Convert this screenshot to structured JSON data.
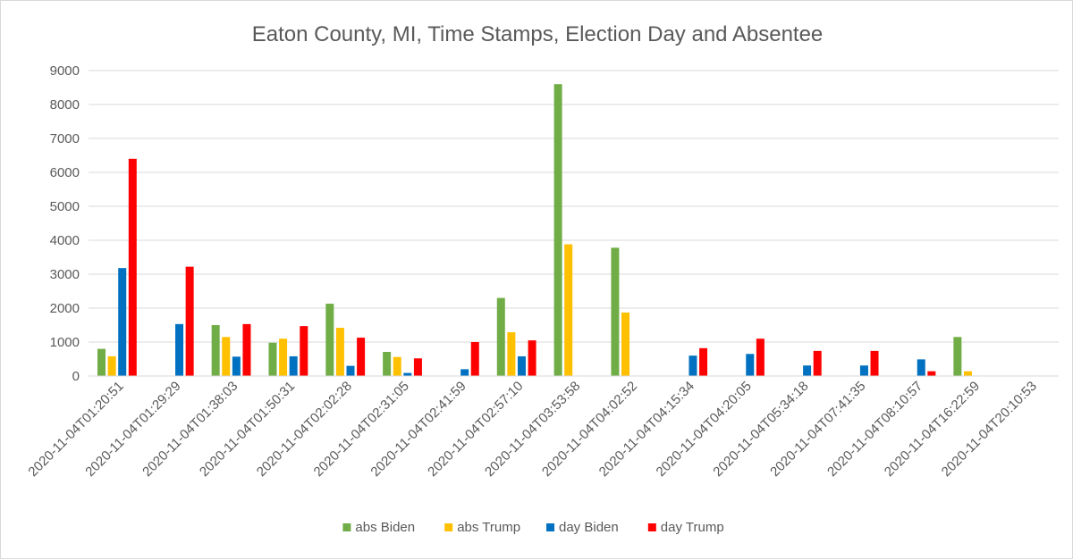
{
  "chart_data": {
    "type": "bar",
    "title": "Eaton County, MI, Time Stamps, Election Day and Absentee",
    "xlabel": "",
    "ylabel": "",
    "ylim": [
      0,
      9000
    ],
    "yticks": [
      0,
      1000,
      2000,
      3000,
      4000,
      5000,
      6000,
      7000,
      8000,
      9000
    ],
    "grid": true,
    "legend_position": "bottom",
    "categories": [
      "2020-11-04T01:20:51",
      "2020-11-04T01:29:29",
      "2020-11-04T01:38:03",
      "2020-11-04T01:50:31",
      "2020-11-04T02:02:28",
      "2020-11-04T02:31:05",
      "2020-11-04T02:41:59",
      "2020-11-04T02:57:10",
      "2020-11-04T03:53:58",
      "2020-11-04T04:02:52",
      "2020-11-04T04:15:34",
      "2020-11-04T04:20:05",
      "2020-11-04T05:34:18",
      "2020-11-04T07:41:35",
      "2020-11-04T08:10:57",
      "2020-11-04T16:22:59",
      "2020-11-04T20:10:53"
    ],
    "series": [
      {
        "name": "abs Biden",
        "color": "#70ad47",
        "values": [
          800,
          0,
          1500,
          980,
          2130,
          710,
          0,
          2300,
          8600,
          3780,
          0,
          0,
          0,
          0,
          0,
          1150,
          0
        ]
      },
      {
        "name": "abs Trump",
        "color": "#ffc000",
        "values": [
          580,
          0,
          1150,
          1100,
          1420,
          560,
          0,
          1290,
          3880,
          1870,
          0,
          0,
          0,
          0,
          0,
          140,
          0
        ]
      },
      {
        "name": "day Biden",
        "color": "#0070c0",
        "values": [
          3180,
          1530,
          570,
          580,
          300,
          90,
          200,
          580,
          0,
          0,
          600,
          650,
          310,
          310,
          490,
          0,
          0
        ]
      },
      {
        "name": "day Trump",
        "color": "#ff0000",
        "values": [
          6400,
          3220,
          1530,
          1470,
          1130,
          520,
          1000,
          1050,
          0,
          0,
          820,
          1100,
          740,
          740,
          140,
          0,
          0
        ]
      }
    ]
  }
}
